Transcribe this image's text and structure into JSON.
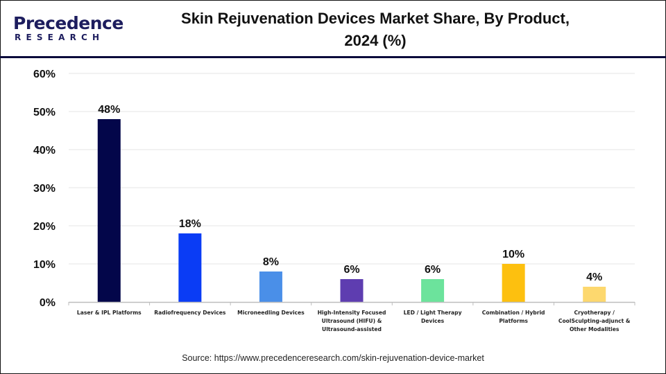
{
  "header": {
    "logo_text_main": "Precedence",
    "logo_text_sub": "RESEARCH",
    "title_line1": "Skin Rejuvenation Devices Market Share, By Product,",
    "title_line2": "2024 (%)"
  },
  "source": "Source: https://www.precedenceresearch.com/skin-rejuvenation-device-market",
  "chart_data": {
    "type": "bar",
    "title": "Skin Rejuvenation Devices Market Share, By Product, 2024 (%)",
    "xlabel": "",
    "ylabel": "",
    "ylim": [
      0,
      60
    ],
    "yticks": [
      0,
      10,
      20,
      30,
      40,
      50,
      60
    ],
    "ytick_labels": [
      "0%",
      "10%",
      "20%",
      "30%",
      "40%",
      "50%",
      "60%"
    ],
    "grid": true,
    "legend": "none",
    "categories": [
      [
        "Laser & IPL Platforms"
      ],
      [
        "Radiofrequency Devices"
      ],
      [
        "Microneedling Devices"
      ],
      [
        "High-Intensity Focused",
        "Ultrasound (HIFU) &",
        "Ultrasound-assisted"
      ],
      [
        "LED / Light Therapy",
        "Devices"
      ],
      [
        "Combination / Hybrid",
        "Platforms"
      ],
      [
        "Cryotherapy /",
        "CoolSculpting-adjunct &",
        "Other Modalities"
      ]
    ],
    "values": [
      48,
      18,
      8,
      6,
      6,
      10,
      4
    ],
    "value_labels": [
      "48%",
      "18%",
      "8%",
      "6%",
      "6%",
      "10%",
      "4%"
    ],
    "colors": [
      "#03064a",
      "#0a3cf5",
      "#4a8fe8",
      "#5e3db0",
      "#6ce39c",
      "#fdc00f",
      "#fdd86e"
    ]
  }
}
